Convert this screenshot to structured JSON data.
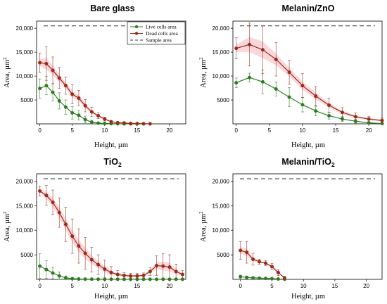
{
  "figure": {
    "colors": {
      "live": "#2e7d22",
      "dead": "#9b2a18",
      "band": "#f7c6cc",
      "sample": "#333333"
    },
    "legend": {
      "live": "Live cells area",
      "dead": "Dead  cells area",
      "sample": "Sample area"
    }
  },
  "chart_data": [
    {
      "type": "line",
      "title": "Bare glass",
      "title_sub": "",
      "xlabel": "Height, µm",
      "ylabel": "Area, µm",
      "ylabel_sup": "2",
      "xlim": [
        -0.5,
        22.5
      ],
      "ylim": [
        0,
        21500
      ],
      "xticks": [
        "0",
        "5",
        "10",
        "15",
        "20"
      ],
      "yticks": [
        "5000",
        "10,000",
        "15,000",
        "20,000"
      ],
      "sample_area": 20500,
      "legend": true,
      "series": [
        {
          "name": "Live cells area",
          "x": [
            0,
            1,
            2,
            3,
            4,
            5,
            6,
            7,
            8,
            9,
            10,
            11,
            12,
            13,
            14,
            15,
            16
          ],
          "y": [
            7400,
            8000,
            6600,
            4800,
            3500,
            2300,
            1800,
            900,
            350,
            150,
            80,
            40,
            20,
            10,
            5,
            5,
            5
          ],
          "err": [
            2000,
            1900,
            1800,
            1700,
            1500,
            1300,
            1000,
            700,
            400,
            200,
            120,
            60,
            30,
            20,
            10,
            10,
            10
          ]
        },
        {
          "name": "Dead  cells area",
          "x": [
            0,
            1,
            2,
            3,
            4,
            5,
            6,
            7,
            8,
            9,
            10,
            11,
            12,
            13,
            14,
            15,
            16,
            17
          ],
          "y": [
            12800,
            12600,
            11200,
            9600,
            8000,
            6200,
            5400,
            3800,
            2500,
            1700,
            1000,
            450,
            250,
            180,
            100,
            60,
            30,
            10
          ],
          "err": [
            2000,
            3500,
            2800,
            2200,
            1800,
            2000,
            1600,
            1300,
            1000,
            600,
            400,
            250,
            150,
            120,
            80,
            60,
            40,
            20
          ]
        }
      ]
    },
    {
      "type": "line",
      "title": "Melanin/ZnO",
      "title_sub": "",
      "xlabel": "Height, µm",
      "ylabel": "Area, µm",
      "ylabel_sup": "2",
      "xlim": [
        -0.5,
        22
      ],
      "ylim": [
        0,
        21500
      ],
      "xticks": [
        "0",
        "5",
        "10",
        "15",
        "20"
      ],
      "yticks": [
        "5000",
        "10,000",
        "15,000",
        "20,000"
      ],
      "sample_area": 20500,
      "legend": false,
      "series": [
        {
          "name": "Live cells area",
          "x": [
            0,
            2,
            4,
            6,
            8,
            10,
            12,
            14,
            16,
            18,
            20,
            22
          ],
          "y": [
            8600,
            9700,
            8800,
            7300,
            5600,
            4000,
            2700,
            1700,
            1000,
            550,
            200,
            60
          ],
          "err": [
            1000,
            900,
            2500,
            1500,
            2000,
            1500,
            1000,
            700,
            500,
            400,
            200,
            100
          ]
        },
        {
          "name": "Dead  cells area",
          "x": [
            0,
            2,
            4,
            6,
            8,
            10,
            12,
            14,
            16,
            18,
            20,
            22
          ],
          "y": [
            15800,
            16600,
            15500,
            13500,
            10800,
            8000,
            5800,
            3900,
            2400,
            1500,
            1000,
            700
          ],
          "err": [
            2200,
            4500,
            5000,
            3500,
            2500,
            2500,
            2000,
            1500,
            1000,
            800,
            600,
            500
          ]
        }
      ]
    },
    {
      "type": "line",
      "title": "TiO",
      "title_sub": "2",
      "xlabel": "Height, µm",
      "ylabel": "Area, µm",
      "ylabel_sup": "2",
      "xlim": [
        -0.5,
        22.5
      ],
      "ylim": [
        0,
        21500
      ],
      "xticks": [
        "0",
        "5",
        "10",
        "15",
        "20"
      ],
      "yticks": [
        "5000",
        "10,000",
        "15,000",
        "20,000"
      ],
      "sample_area": 20500,
      "legend": false,
      "series": [
        {
          "name": "Live cells area",
          "x": [
            0,
            1,
            2,
            3,
            4,
            5,
            6,
            7,
            8,
            9,
            10,
            11,
            12,
            13,
            14,
            15,
            16,
            17,
            18,
            19,
            20,
            21,
            22
          ],
          "y": [
            2700,
            2000,
            1300,
            700,
            300,
            150,
            80,
            50,
            40,
            30,
            20,
            20,
            20,
            20,
            20,
            20,
            20,
            20,
            20,
            20,
            20,
            20,
            20
          ],
          "err": [
            2500,
            1800,
            1200,
            800,
            400,
            200,
            100,
            60,
            40,
            30,
            20,
            20,
            20,
            20,
            20,
            20,
            20,
            20,
            20,
            20,
            20,
            20,
            20
          ]
        },
        {
          "name": "Dead  cells area",
          "x": [
            0,
            1,
            2,
            3,
            4,
            5,
            6,
            7,
            8,
            9,
            10,
            11,
            12,
            13,
            14,
            15,
            16,
            17,
            18,
            19,
            20,
            21,
            22
          ],
          "y": [
            18000,
            17100,
            15700,
            13600,
            11200,
            8800,
            6800,
            5300,
            4000,
            3000,
            2100,
            1400,
            1000,
            800,
            700,
            700,
            800,
            1600,
            2800,
            2700,
            2500,
            1600,
            1000
          ],
          "err": [
            1000,
            2000,
            2500,
            3000,
            3500,
            3500,
            3500,
            3200,
            2500,
            2000,
            1800,
            1200,
            800,
            600,
            500,
            500,
            500,
            800,
            2000,
            2500,
            2500,
            1500,
            800
          ]
        }
      ]
    },
    {
      "type": "line",
      "title": "Melanin/TiO",
      "title_sub": "2",
      "xlabel": "Height, µm",
      "ylabel": "Area, µm",
      "ylabel_sup": "2",
      "xlim": [
        -1.2,
        22.5
      ],
      "ylim": [
        0,
        21500
      ],
      "xticks": [
        "0",
        "5",
        "10",
        "15",
        "20"
      ],
      "yticks": [
        "5000",
        "10,000",
        "15,000",
        "20,000"
      ],
      "sample_area": 20500,
      "legend": false,
      "series": [
        {
          "name": "Live cells area",
          "x": [
            0,
            1,
            2,
            3,
            4,
            5,
            6,
            7
          ],
          "y": [
            550,
            400,
            300,
            250,
            200,
            150,
            80,
            30
          ],
          "err": [
            300,
            250,
            200,
            150,
            150,
            100,
            60,
            30
          ]
        },
        {
          "name": "Dead  cells area",
          "x": [
            0,
            1,
            2,
            3,
            4,
            5,
            6,
            7
          ],
          "y": [
            5900,
            5500,
            4100,
            3600,
            3300,
            2600,
            1400,
            300
          ],
          "err": [
            1800,
            2200,
            1200,
            500,
            500,
            600,
            600,
            300
          ]
        }
      ]
    }
  ]
}
